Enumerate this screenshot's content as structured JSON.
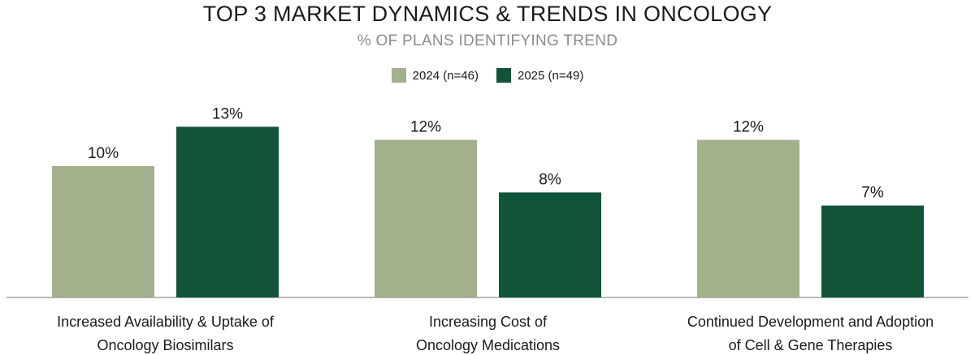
{
  "chart_data": {
    "type": "bar",
    "title": "TOP 3 MARKET DYNAMICS & TRENDS IN ONCOLOGY",
    "subtitle": "% OF PLANS IDENTIFYING TREND",
    "categories": [
      [
        "Increased Availability & Uptake of",
        "Oncology Biosimilars"
      ],
      [
        "Increasing Cost of",
        "Oncology Medications"
      ],
      [
        "Continued Development and Adoption",
        "of Cell & Gene Therapies"
      ]
    ],
    "series": [
      {
        "name": "2024 (n=46)",
        "color": "#a2b08c",
        "values": [
          10,
          12,
          12
        ],
        "labels": [
          "10%",
          "12%",
          "12%"
        ]
      },
      {
        "name": "2025 (n=49)",
        "color": "#11543a",
        "values": [
          13,
          8,
          7
        ],
        "labels": [
          "13%",
          "8%",
          "7%"
        ]
      }
    ],
    "ylim": [
      0,
      16
    ],
    "grid": false,
    "legend": "top-center"
  }
}
